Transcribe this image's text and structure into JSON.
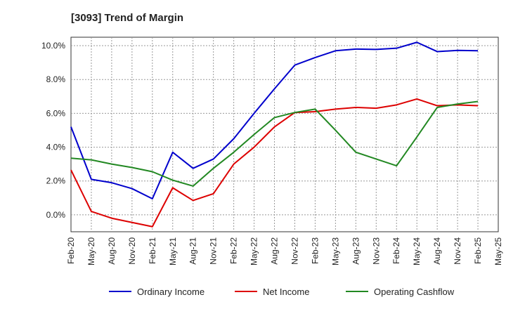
{
  "chart_data": {
    "type": "line",
    "title": "[3093]  Trend of Margin",
    "xlabel": "",
    "ylabel": "",
    "x": [
      "Feb-20",
      "May-20",
      "Aug-20",
      "Nov-20",
      "Feb-21",
      "May-21",
      "Aug-21",
      "Nov-21",
      "Feb-22",
      "May-22",
      "Aug-22",
      "Nov-22",
      "Feb-23",
      "May-23",
      "Aug-23",
      "Nov-23",
      "Feb-24",
      "May-24",
      "Aug-24",
      "Nov-24",
      "Feb-25"
    ],
    "x_ticks": [
      "Feb-20",
      "May-20",
      "Aug-20",
      "Nov-20",
      "Feb-21",
      "May-21",
      "Aug-21",
      "Nov-21",
      "Feb-22",
      "May-22",
      "Aug-22",
      "Nov-22",
      "Feb-23",
      "May-23",
      "Aug-23",
      "Nov-23",
      "Feb-24",
      "May-24",
      "Aug-24",
      "Nov-24",
      "Feb-25",
      "May-25"
    ],
    "y_ticks": [
      "10.0%",
      "8.0%",
      "6.0%",
      "4.0%",
      "2.0%",
      "0.0%"
    ],
    "y_tick_values": [
      10,
      8,
      6,
      4,
      2,
      0
    ],
    "ylim": [
      -1.0,
      10.5
    ],
    "grid": true,
    "legend_position": "bottom",
    "series": [
      {
        "name": "Ordinary Income",
        "color": "#0000cc",
        "values": [
          5.2,
          2.1,
          1.9,
          1.55,
          0.95,
          3.7,
          2.75,
          3.3,
          4.5,
          6.0,
          7.45,
          8.85,
          9.3,
          9.7,
          9.8,
          9.78,
          9.85,
          10.2,
          9.65,
          9.72,
          9.7
        ]
      },
      {
        "name": "Net Income",
        "color": "#dd0000",
        "values": [
          2.65,
          0.2,
          -0.2,
          -0.45,
          -0.7,
          1.6,
          0.85,
          1.25,
          3.0,
          4.0,
          5.2,
          6.05,
          6.1,
          6.25,
          6.35,
          6.3,
          6.5,
          6.85,
          6.45,
          6.5,
          6.45
        ]
      },
      {
        "name": "Operating Cashflow",
        "color": "#228822",
        "values": [
          3.35,
          3.25,
          3.0,
          2.8,
          2.55,
          2.05,
          1.7,
          2.75,
          3.7,
          4.75,
          5.75,
          6.05,
          6.25,
          5.0,
          3.7,
          3.3,
          2.9,
          4.6,
          6.35,
          6.55,
          6.7
        ]
      }
    ]
  }
}
